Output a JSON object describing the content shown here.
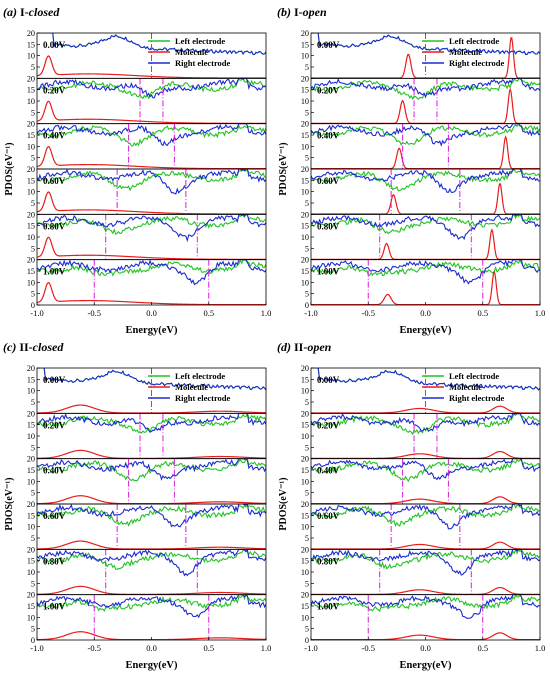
{
  "figure": {
    "ylabel": "PDOS(eV⁻¹)",
    "xlabel": "Energy(eV)"
  },
  "legend_labels": [
    "Left electrode",
    "Molecule",
    "Right electrode"
  ],
  "colors": {
    "left": "#22c322",
    "molecule": "#e81c1c",
    "right": "#1c2bd0",
    "window": "#d81ed8",
    "axis": "#000000"
  },
  "chart_data": [
    {
      "type": "line",
      "letter": "(a)",
      "system": "I-",
      "state": "closed",
      "xlim": [
        -1.0,
        1.0
      ],
      "ylim": [
        0,
        20
      ],
      "x_ticks": [
        "-1.0",
        "-0.5",
        "0.0",
        "0.5",
        "1.0"
      ],
      "y_ticks": [
        "0",
        "5",
        "10",
        "15",
        "20"
      ],
      "x_unit": "Energy (eV)",
      "bias_labels": [
        "0.00V",
        "0.20V",
        "0.40V",
        "0.60V",
        "0.80V",
        "1.00V"
      ],
      "bias_window": [
        [
          0,
          0
        ],
        [
          -0.1,
          0.1
        ],
        [
          -0.2,
          0.2
        ],
        [
          -0.3,
          0.3
        ],
        [
          -0.4,
          0.4
        ],
        [
          -0.5,
          0.5
        ]
      ],
      "series": [
        {
          "name": "Left electrode",
          "kind": "electrode",
          "edge": -0.88
        },
        {
          "name": "Molecule",
          "kind": "molecule",
          "peaks": [
            [
              -0.9,
              8.5,
              0.03
            ],
            [
              -0.55,
              1.8,
              0.4
            ]
          ]
        },
        {
          "name": "Right electrode",
          "kind": "electrode",
          "edge": -0.88
        }
      ]
    },
    {
      "type": "line",
      "letter": "(b)",
      "system": "I-",
      "state": "open",
      "xlim": [
        -1.0,
        1.0
      ],
      "ylim": [
        0,
        20
      ],
      "x_ticks": [
        "-1.0",
        "-0.5",
        "0.0",
        "0.5",
        "1.0"
      ],
      "y_ticks": [
        "0",
        "5",
        "10",
        "15",
        "20"
      ],
      "x_unit": "Energy (eV)",
      "bias_labels": [
        "0.00V",
        "0.20V",
        "0.40V",
        "0.60V",
        "0.80V",
        "1.00V"
      ],
      "bias_window": [
        [
          0,
          0
        ],
        [
          -0.1,
          0.1
        ],
        [
          -0.2,
          0.2
        ],
        [
          -0.3,
          0.3
        ],
        [
          -0.4,
          0.4
        ],
        [
          -0.5,
          0.5
        ]
      ],
      "series": [
        {
          "name": "Left electrode",
          "kind": "electrode",
          "edge": -0.95
        },
        {
          "name": "Molecule",
          "kind": "molecule",
          "peaks_by_bias": [
            [
              [
                -0.15,
                10.5,
                0.022
              ],
              [
                0.75,
                18,
                0.018
              ]
            ],
            [
              [
                -0.2,
                10,
                0.022
              ],
              [
                0.74,
                15,
                0.018
              ]
            ],
            [
              [
                -0.23,
                9,
                0.022
              ],
              [
                0.7,
                14,
                0.018
              ]
            ],
            [
              [
                -0.28,
                8.5,
                0.022
              ],
              [
                0.65,
                13.5,
                0.018
              ]
            ],
            [
              [
                -0.34,
                7,
                0.022
              ],
              [
                0.58,
                13,
                0.018
              ]
            ],
            [
              [
                -0.33,
                4.5,
                0.03
              ],
              [
                0.6,
                14.5,
                0.018
              ]
            ]
          ]
        },
        {
          "name": "Right electrode",
          "kind": "electrode",
          "edge": -0.95
        }
      ]
    },
    {
      "type": "line",
      "letter": "(c)",
      "system": "II-",
      "state": "closed",
      "xlim": [
        -1.0,
        1.0
      ],
      "ylim": [
        0,
        20
      ],
      "x_ticks": [
        "-1.0",
        "-0.5",
        "0.0",
        "0.5",
        "1.0"
      ],
      "y_ticks": [
        "0",
        "5",
        "10",
        "15",
        "20"
      ],
      "x_unit": "Energy (eV)",
      "bias_labels": [
        "0.00V",
        "0.20V",
        "0.40V",
        "0.60V",
        "0.80V",
        "1.00V"
      ],
      "bias_window": [
        [
          0,
          0
        ],
        [
          -0.1,
          0.1
        ],
        [
          -0.2,
          0.2
        ],
        [
          -0.3,
          0.3
        ],
        [
          -0.4,
          0.4
        ],
        [
          -0.5,
          0.5
        ]
      ],
      "series": [
        {
          "name": "Left electrode",
          "kind": "electrode",
          "edge": -0.95
        },
        {
          "name": "Molecule",
          "kind": "molecule",
          "peaks": [
            [
              -0.62,
              3.5,
              0.12
            ],
            [
              0.6,
              0.8,
              0.2
            ]
          ]
        },
        {
          "name": "Right electrode",
          "kind": "electrode",
          "edge": -0.95
        }
      ]
    },
    {
      "type": "line",
      "letter": "(d)",
      "system": "II-",
      "state": "open",
      "xlim": [
        -1.0,
        1.0
      ],
      "ylim": [
        0,
        20
      ],
      "x_ticks": [
        "-1.0",
        "-0.5",
        "0.0",
        "0.5",
        "1.0"
      ],
      "y_ticks": [
        "0",
        "5",
        "10",
        "15",
        "20"
      ],
      "x_unit": "Energy (eV)",
      "bias_labels": [
        "0.00V",
        "0.20V",
        "0.40V",
        "0.60V",
        "0.80V",
        "1.00V"
      ],
      "bias_window": [
        [
          0,
          0
        ],
        [
          -0.1,
          0.1
        ],
        [
          -0.2,
          0.2
        ],
        [
          -0.3,
          0.3
        ],
        [
          -0.4,
          0.4
        ],
        [
          -0.5,
          0.5
        ]
      ],
      "series": [
        {
          "name": "Left electrode",
          "kind": "electrode",
          "edge": -0.95
        },
        {
          "name": "Molecule",
          "kind": "molecule",
          "peaks": [
            [
              -0.05,
              2.0,
              0.12
            ],
            [
              0.65,
              3.0,
              0.06
            ]
          ]
        },
        {
          "name": "Right electrode",
          "kind": "electrode",
          "edge": -0.95
        }
      ]
    }
  ]
}
